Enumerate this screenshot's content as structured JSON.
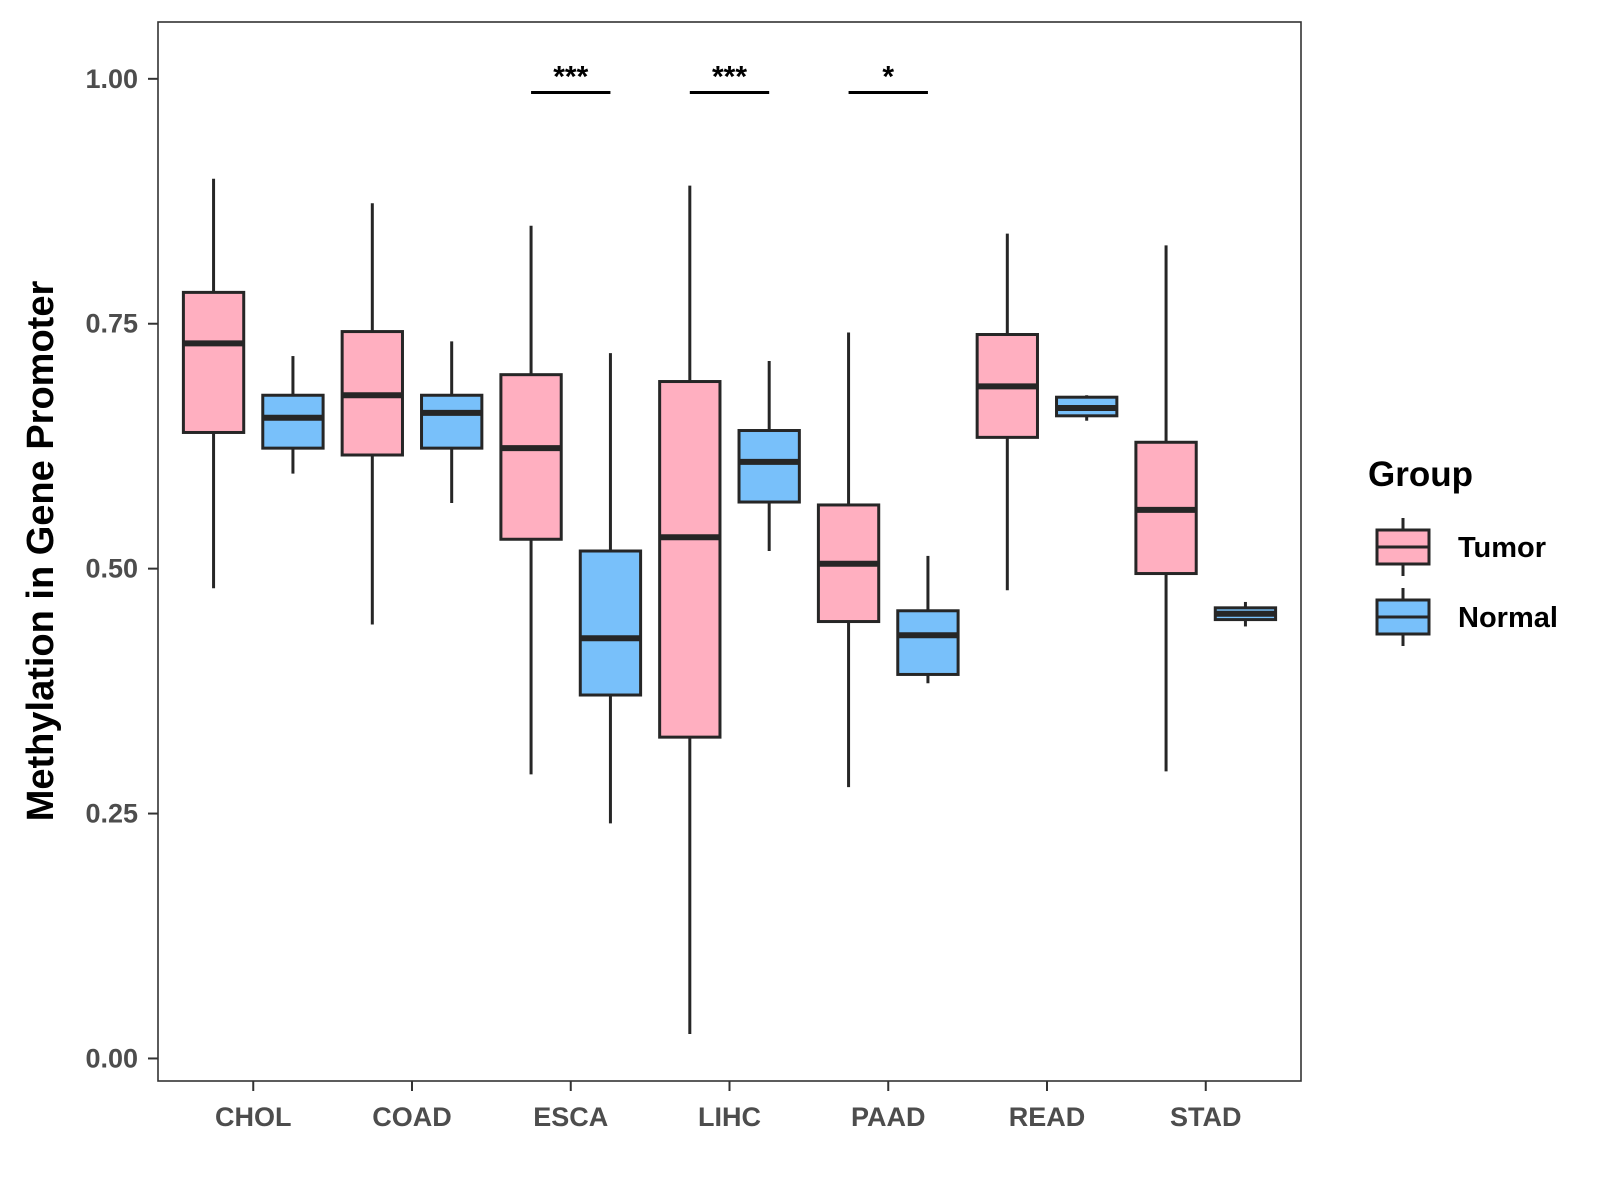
{
  "chart_data": {
    "type": "boxplot",
    "title": "",
    "xlabel": "",
    "ylabel": "Methylation in Gene Promoter",
    "ylim": [
      -0.023,
      1.058
    ],
    "yticks": [
      0.0,
      0.25,
      0.5,
      0.75,
      1.0
    ],
    "ytick_labels": [
      "0.00",
      "0.25",
      "0.50",
      "0.75",
      "1.00"
    ],
    "categories": [
      "CHOL",
      "COAD",
      "ESCA",
      "LIHC",
      "PAAD",
      "READ",
      "STAD"
    ],
    "legend": {
      "title": "Group",
      "position": "right",
      "entries": [
        {
          "name": "Tumor",
          "color": "#FFAFC0"
        },
        {
          "name": "Normal",
          "color": "#78C0FA"
        }
      ]
    },
    "series": [
      {
        "name": "Tumor",
        "color": "#FFAFC0",
        "boxes": [
          {
            "category": "CHOL",
            "min": 0.48,
            "q1": 0.639,
            "median": 0.73,
            "q3": 0.782,
            "max": 0.898
          },
          {
            "category": "COAD",
            "min": 0.443,
            "q1": 0.616,
            "median": 0.677,
            "q3": 0.742,
            "max": 0.873
          },
          {
            "category": "ESCA",
            "min": 0.29,
            "q1": 0.53,
            "median": 0.623,
            "q3": 0.698,
            "max": 0.85
          },
          {
            "category": "LIHC",
            "min": 0.025,
            "q1": 0.328,
            "median": 0.532,
            "q3": 0.691,
            "max": 0.891
          },
          {
            "category": "PAAD",
            "min": 0.277,
            "q1": 0.446,
            "median": 0.505,
            "q3": 0.565,
            "max": 0.741
          },
          {
            "category": "READ",
            "min": 0.478,
            "q1": 0.634,
            "median": 0.686,
            "q3": 0.739,
            "max": 0.842
          },
          {
            "category": "STAD",
            "min": 0.293,
            "q1": 0.495,
            "median": 0.56,
            "q3": 0.629,
            "max": 0.83
          }
        ]
      },
      {
        "name": "Normal",
        "color": "#78C0FA",
        "boxes": [
          {
            "category": "CHOL",
            "min": 0.597,
            "q1": 0.623,
            "median": 0.654,
            "q3": 0.677,
            "max": 0.717
          },
          {
            "category": "COAD",
            "min": 0.567,
            "q1": 0.623,
            "median": 0.659,
            "q3": 0.677,
            "max": 0.732
          },
          {
            "category": "ESCA",
            "min": 0.24,
            "q1": 0.371,
            "median": 0.429,
            "q3": 0.518,
            "max": 0.72
          },
          {
            "category": "LIHC",
            "min": 0.518,
            "q1": 0.568,
            "median": 0.609,
            "q3": 0.641,
            "max": 0.712
          },
          {
            "category": "PAAD",
            "min": 0.383,
            "q1": 0.392,
            "median": 0.432,
            "q3": 0.457,
            "max": 0.513
          },
          {
            "category": "READ",
            "min": 0.651,
            "q1": 0.656,
            "median": 0.664,
            "q3": 0.675,
            "max": 0.677
          },
          {
            "category": "STAD",
            "min": 0.441,
            "q1": 0.448,
            "median": 0.454,
            "q3": 0.46,
            "max": 0.466
          }
        ]
      }
    ],
    "significance": [
      {
        "category": "ESCA",
        "label": "***",
        "y": 0.986
      },
      {
        "category": "LIHC",
        "label": "***",
        "y": 0.986
      },
      {
        "category": "PAAD",
        "label": "*",
        "y": 0.986
      }
    ]
  }
}
